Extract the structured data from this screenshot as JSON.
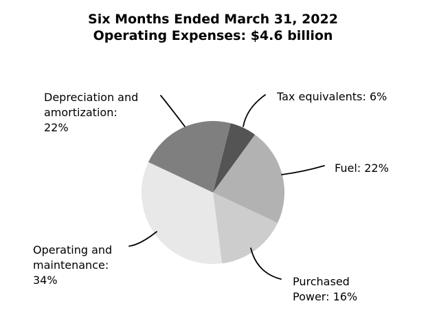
{
  "chart_data": {
    "type": "pie",
    "title_line1": "Six Months Ended March 31, 2022",
    "title_line2": "Operating Expenses: $4.6 billion",
    "total": "$4.6 billion",
    "legend_position": "none",
    "start_angle_clockwise_from_top_deg": 14.4,
    "slices": [
      {
        "id": "tax-equivalents",
        "label": "Tax equivalents",
        "value_pct": 6,
        "color": "#545454",
        "callout_text": "Tax equivalents: 6%"
      },
      {
        "id": "fuel",
        "label": "Fuel",
        "value_pct": 22,
        "color": "#b2b2b2",
        "callout_text": "Fuel: 22%"
      },
      {
        "id": "purchased-power",
        "label": "Purchased Power",
        "value_pct": 16,
        "color": "#cdcdcd",
        "callout_text": "Purchased\nPower: 16%"
      },
      {
        "id": "operating-and-maintenance",
        "label": "Operating and maintenance",
        "value_pct": 34,
        "color": "#e8e8e8",
        "callout_text": "Operating and\nmaintenance:\n34%"
      },
      {
        "id": "depreciation-and-amortization",
        "label": "Depreciation and amortization",
        "value_pct": 22,
        "color": "#7f7f7f",
        "callout_text": "Depreciation and\namortization:\n22%"
      }
    ]
  }
}
